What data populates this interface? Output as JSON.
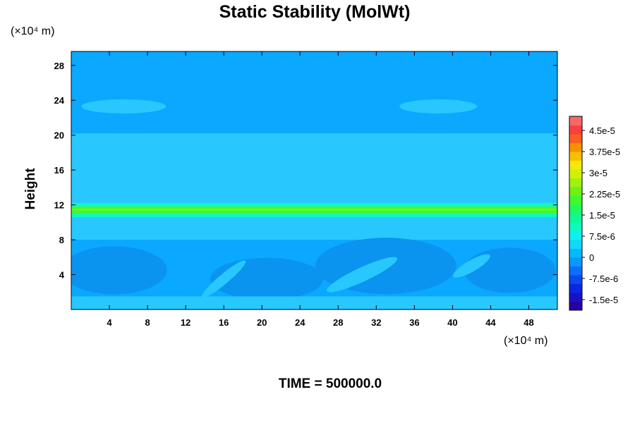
{
  "chart_data": {
    "type": "heatmap",
    "title": "Static Stability (MolWt)",
    "ylabel": "Height",
    "xlabel": "",
    "x_unit": "(×10⁴ m)",
    "y_unit": "(×10⁴ m)",
    "xlim": [
      0,
      51
    ],
    "ylim": [
      0,
      29.6
    ],
    "x_ticks": [
      4,
      8,
      12,
      16,
      20,
      24,
      28,
      32,
      36,
      40,
      44,
      48
    ],
    "y_ticks": [
      4,
      8,
      12,
      16,
      20,
      24,
      28
    ],
    "colorbar": {
      "labels": [
        "4.5e-5",
        "3.75e-5",
        "3e-5",
        "2.25e-5",
        "1.5e-5",
        "7.5e-6",
        "0",
        "-7.5e-6",
        "-1.5e-5"
      ],
      "label_values": [
        4.5e-05,
        3.75e-05,
        3e-05,
        2.25e-05,
        1.5e-05,
        7.5e-06,
        0,
        -7.5e-06,
        -1.5e-05
      ],
      "min": -1.875e-05,
      "max": 5e-05,
      "levels": 22,
      "colors": [
        "#2a00a0",
        "#1a10c8",
        "#0a28e0",
        "#0a48f0",
        "#0a70f8",
        "#0a98fc",
        "#05b8ff",
        "#10d8ff",
        "#10f0f0",
        "#10f8c0",
        "#10f890",
        "#20f860",
        "#40f830",
        "#70f010",
        "#a0f010",
        "#d0f008",
        "#f8e808",
        "#f8c000",
        "#f89000",
        "#f86020",
        "#f84040",
        "#f86868"
      ]
    },
    "field_description_levels": {
      "background": 0,
      "upper_band": 0,
      "tropopause_peak": 1.8e-05
    },
    "footer": "TIME = 500000.0",
    "grid": false
  }
}
